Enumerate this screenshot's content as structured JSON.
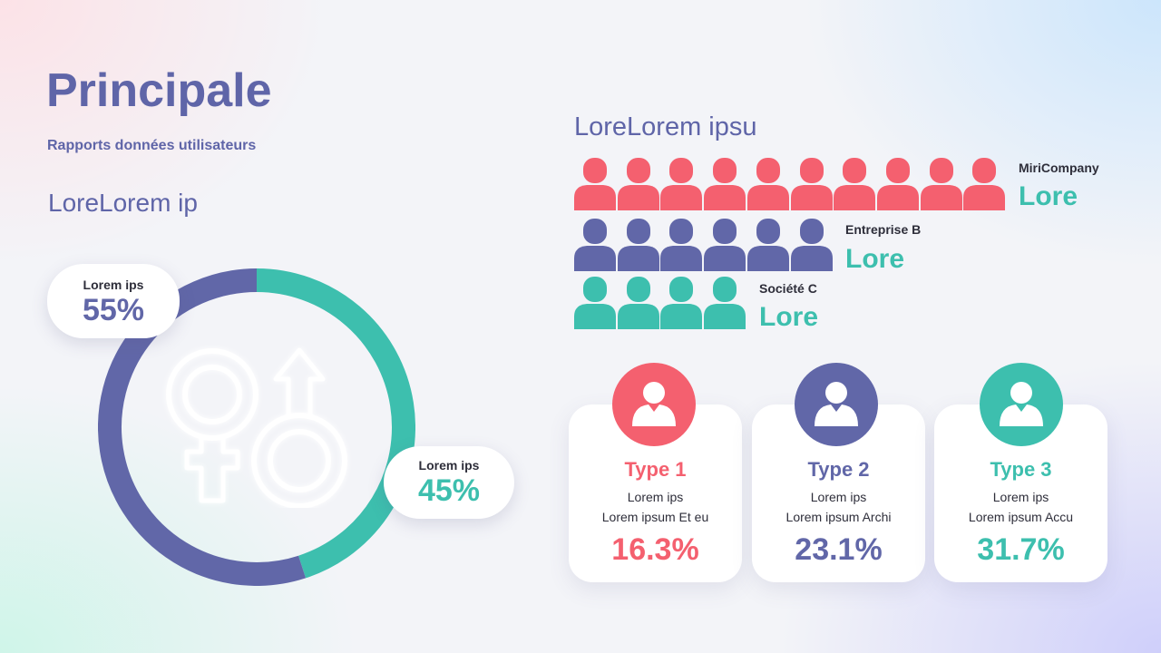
{
  "colors": {
    "purple": "#6167a8",
    "teal": "#3dbfae",
    "coral": "#f4606f",
    "text_dark": "#2e2e3a"
  },
  "header": {
    "title": "Principale",
    "subtitle": "Rapports données utilisateurs"
  },
  "left_section": {
    "heading": "LoreLorem ip",
    "icon": "gender-symbols-icon"
  },
  "right_section": {
    "heading": "LoreLorem ipsu"
  },
  "chart_data": [
    {
      "type": "pie",
      "categories": [
        "Lorem ips",
        "Lorem ips"
      ],
      "values": [
        55,
        45
      ],
      "labels": [
        "55%",
        "45%"
      ],
      "colors": [
        "#6167a8",
        "#3dbfae"
      ]
    },
    {
      "type": "bar",
      "categories": [
        "MiriCompany",
        "Entreprise B",
        "Société C"
      ],
      "values": [
        10,
        6,
        4
      ],
      "value_labels": [
        "Lore",
        "Lore",
        "Lore"
      ],
      "colors": [
        "#f4606f",
        "#6167a8",
        "#3dbfae"
      ],
      "icon": "person-icon"
    }
  ],
  "cards": [
    {
      "title": "Type 1",
      "line1": "Lorem ips",
      "line2": "Lorem ipsum Et eu",
      "value": "16.3%",
      "color": "#f4606f",
      "icon": "user-icon"
    },
    {
      "title": "Type 2",
      "line1": "Lorem ips",
      "line2": "Lorem ipsum Archi",
      "value": "23.1%",
      "color": "#6167a8",
      "icon": "user-icon"
    },
    {
      "title": "Type 3",
      "line1": "Lorem ips",
      "line2": "Lorem ipsum Accu",
      "value": "31.7%",
      "color": "#3dbfae",
      "icon": "user-icon"
    }
  ]
}
